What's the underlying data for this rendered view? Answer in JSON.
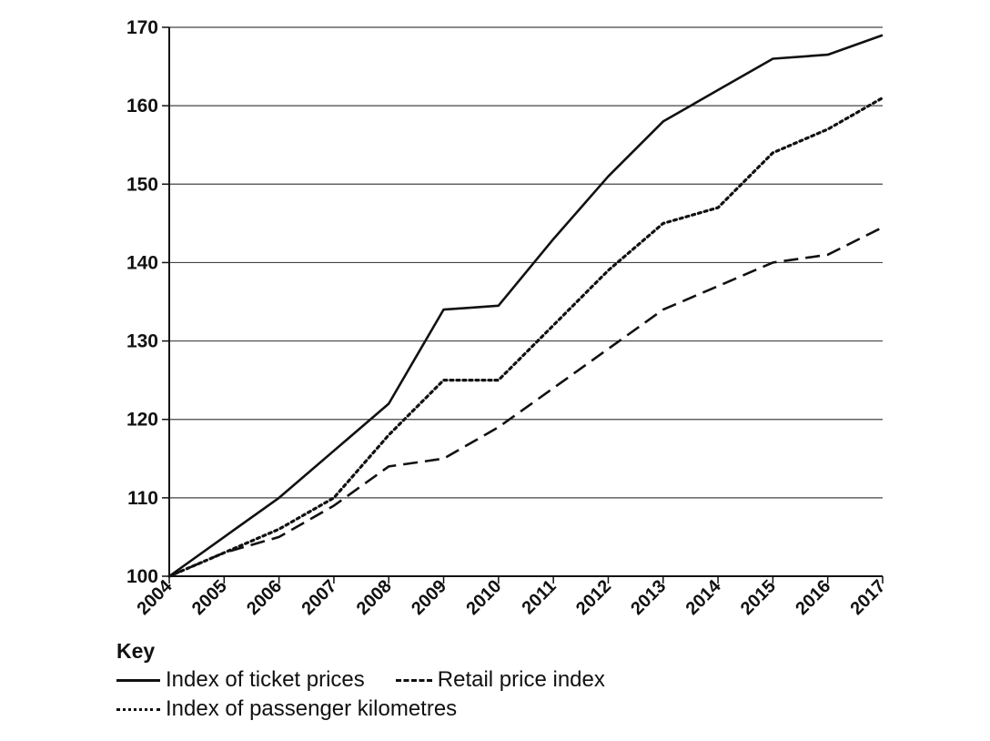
{
  "chart_data": {
    "type": "line",
    "title": "",
    "xlabel": "",
    "ylabel": "",
    "ylim": [
      100,
      170
    ],
    "yticks": [
      "100",
      "110",
      "120",
      "130",
      "140",
      "150",
      "160",
      "170"
    ],
    "categories": [
      "2004",
      "2005",
      "2006",
      "2007",
      "2008",
      "2009",
      "2010",
      "2011",
      "2012",
      "2013",
      "2014",
      "2015",
      "2016",
      "2017"
    ],
    "grid": true,
    "series": [
      {
        "name": "Index of ticket prices",
        "style": "solid",
        "values": [
          100,
          105,
          110,
          116,
          122,
          134,
          134.5,
          143,
          151,
          158,
          162,
          166,
          166.5,
          169
        ]
      },
      {
        "name": "Retail price index",
        "style": "dashed",
        "values": [
          100,
          103,
          105,
          109,
          114,
          115,
          119,
          124,
          129,
          134,
          137,
          140,
          141,
          144.5
        ]
      },
      {
        "name": "Index of passenger kilometres",
        "style": "dotted",
        "values": [
          100,
          103,
          106,
          110,
          118,
          125,
          125,
          132,
          139,
          145,
          147,
          154,
          157,
          161
        ]
      }
    ],
    "legend": {
      "title": "Key",
      "position": "bottom-left"
    }
  },
  "colors": {
    "line": "#111111",
    "grid": "#444444"
  }
}
